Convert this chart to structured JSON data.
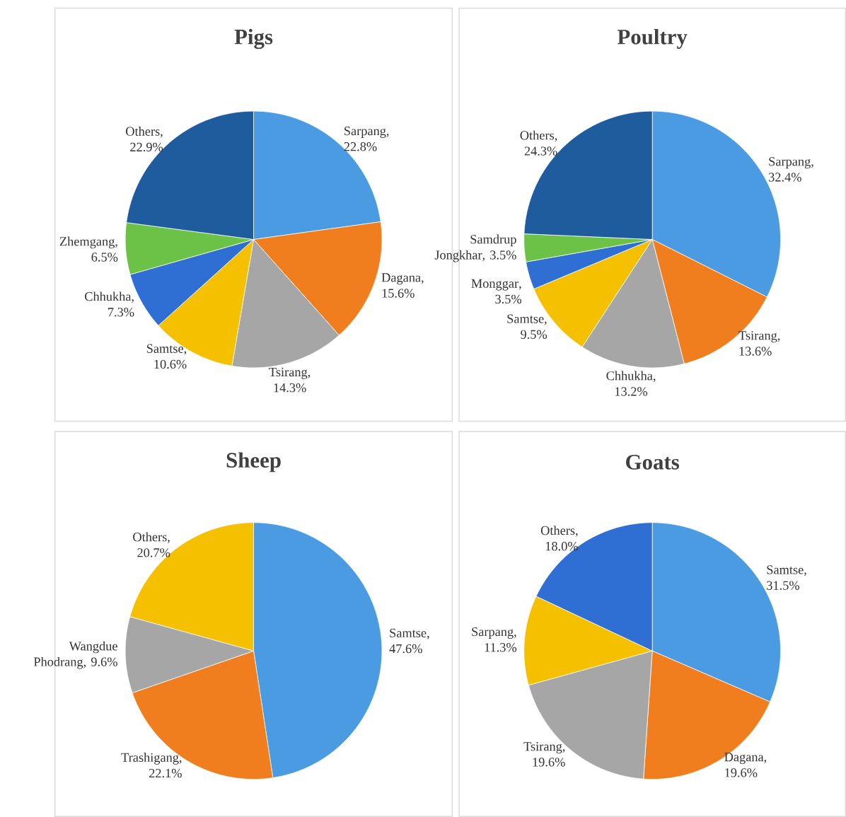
{
  "chart_data": [
    {
      "type": "pie",
      "title": "Pigs",
      "categories": [
        "Sarpang",
        "Dagana",
        "Tsirang",
        "Samtse",
        "Chhukha",
        "Zhemgang",
        "Others"
      ],
      "values": [
        22.8,
        15.6,
        14.3,
        10.6,
        7.3,
        6.5,
        22.9
      ],
      "value_labels": [
        ", 22.8%",
        ", 15.6%",
        ", 14.3%",
        ", 10.6%",
        ", 7.3%",
        ", 6.5%",
        ", 22.9%"
      ],
      "colors": [
        "#4a9be2",
        "#f07d1e",
        "#a6a6a6",
        "#f5c000",
        "#2f6fd3",
        "#6cc247",
        "#1f5c9e"
      ]
    },
    {
      "type": "pie",
      "title": "Poultry",
      "categories": [
        "Sarpang",
        "Tsirang",
        "Chhukha",
        "Samtse",
        "Monggar",
        "Samdrup Jongkhar",
        "Others"
      ],
      "values": [
        32.4,
        13.6,
        13.2,
        9.5,
        3.5,
        3.5,
        24.3
      ],
      "value_labels": [
        ", 32.4%",
        ", 13.6%",
        ", 13.2%",
        ", 9.5%",
        ", 3.5%",
        ", 3.5%",
        ", 24.3%"
      ],
      "colors": [
        "#4a9be2",
        "#f07d1e",
        "#a6a6a6",
        "#f5c000",
        "#2f6fd3",
        "#6cc247",
        "#1f5c9e"
      ]
    },
    {
      "type": "pie",
      "title": "Sheep",
      "categories": [
        "Samtse",
        "Trashigang",
        "Wangdue Phodrang",
        "Others"
      ],
      "values": [
        47.6,
        22.1,
        9.6,
        20.7
      ],
      "value_labels": [
        ", 47.6%",
        ", 22.1%",
        ", 9.6%",
        ", 20.7%"
      ],
      "colors": [
        "#4a9be2",
        "#f07d1e",
        "#a6a6a6",
        "#f5c000"
      ]
    },
    {
      "type": "pie",
      "title": "Goats",
      "categories": [
        "Samtse",
        "Dagana",
        "Tsirang",
        "Sarpang",
        "Others"
      ],
      "values": [
        31.5,
        19.6,
        19.6,
        11.3,
        18.0
      ],
      "value_labels": [
        ", 31.5%",
        ", 19.6%",
        ", 19.6%",
        ", 11.3%",
        ", 18.0%"
      ],
      "colors": [
        "#4a9be2",
        "#f07d1e",
        "#a6a6a6",
        "#f5c000",
        "#2f6fd3"
      ]
    }
  ]
}
